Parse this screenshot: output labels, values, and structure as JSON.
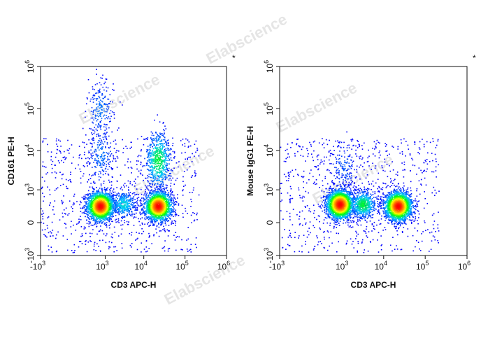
{
  "watermark": "Elabscience",
  "chart_data": [
    {
      "type": "scatter",
      "xlabel": "CD3 APC-H",
      "ylabel": "CD161 PE-H",
      "corner_mark": "*",
      "x_scale": "biexponential",
      "y_scale": "biexponential",
      "xlim": [
        -1000,
        1000000
      ],
      "ylim": [
        -1000,
        1000000
      ],
      "xticks": [
        {
          "base": "-10",
          "exp": "3",
          "value": -1000
        },
        {
          "base": "10",
          "exp": "3",
          "value": 1000
        },
        {
          "base": "10",
          "exp": "4",
          "value": 10000
        },
        {
          "base": "10",
          "exp": "5",
          "value": 100000
        },
        {
          "base": "10",
          "exp": "6",
          "value": 1000000
        }
      ],
      "yticks": [
        {
          "base": "-10",
          "exp": "3",
          "value": -1000
        },
        {
          "base": "0",
          "exp": "",
          "value": 0
        },
        {
          "base": "10",
          "exp": "3",
          "value": 1000
        },
        {
          "base": "10",
          "exp": "4",
          "value": 10000
        },
        {
          "base": "10",
          "exp": "5",
          "value": 100000
        },
        {
          "base": "10",
          "exp": "6",
          "value": 1000000
        }
      ],
      "populations": [
        {
          "x_center": 700,
          "y_center": 300,
          "relative_size": 0.36
        },
        {
          "x_center": 22000,
          "y_center": 300,
          "relative_size": 0.36
        },
        {
          "x_center": 700,
          "y_center": 95000,
          "relative_size": 0.04
        },
        {
          "x_center": 22000,
          "y_center": 6000,
          "relative_size": 0.12
        },
        {
          "x_center": 3000,
          "y_center": 350,
          "relative_size": 0.08
        },
        {
          "x_center": 700,
          "y_center": 8000,
          "relative_size": 0.04
        }
      ],
      "color_scale": [
        "#0000ff",
        "#00c8ff",
        "#00ff00",
        "#ffff00",
        "#ff8000",
        "#ff0000"
      ]
    },
    {
      "type": "scatter",
      "xlabel": "CD3 APC-H",
      "ylabel": "Mouse IgG1 PE-H",
      "corner_mark": "*",
      "x_scale": "biexponential",
      "y_scale": "biexponential",
      "xlim": [
        -1000,
        1000000
      ],
      "ylim": [
        -1000,
        1000000
      ],
      "xticks": [
        {
          "base": "-10",
          "exp": "3",
          "value": -1000
        },
        {
          "base": "10",
          "exp": "3",
          "value": 1000
        },
        {
          "base": "10",
          "exp": "4",
          "value": 10000
        },
        {
          "base": "10",
          "exp": "5",
          "value": 100000
        },
        {
          "base": "10",
          "exp": "6",
          "value": 1000000
        }
      ],
      "yticks": [
        {
          "base": "-10",
          "exp": "3",
          "value": -1000
        },
        {
          "base": "0",
          "exp": "",
          "value": 0
        },
        {
          "base": "10",
          "exp": "3",
          "value": 1000
        },
        {
          "base": "10",
          "exp": "4",
          "value": 10000
        },
        {
          "base": "10",
          "exp": "5",
          "value": 100000
        },
        {
          "base": "10",
          "exp": "6",
          "value": 1000000
        }
      ],
      "populations": [
        {
          "x_center": 700,
          "y_center": 350,
          "relative_size": 0.42
        },
        {
          "x_center": 22000,
          "y_center": 300,
          "relative_size": 0.4
        },
        {
          "x_center": 3000,
          "y_center": 350,
          "relative_size": 0.12
        },
        {
          "x_center": 900,
          "y_center": 4000,
          "relative_size": 0.03
        }
      ],
      "color_scale": [
        "#0000ff",
        "#00c8ff",
        "#00ff00",
        "#ffff00",
        "#ff8000",
        "#ff0000"
      ]
    }
  ]
}
